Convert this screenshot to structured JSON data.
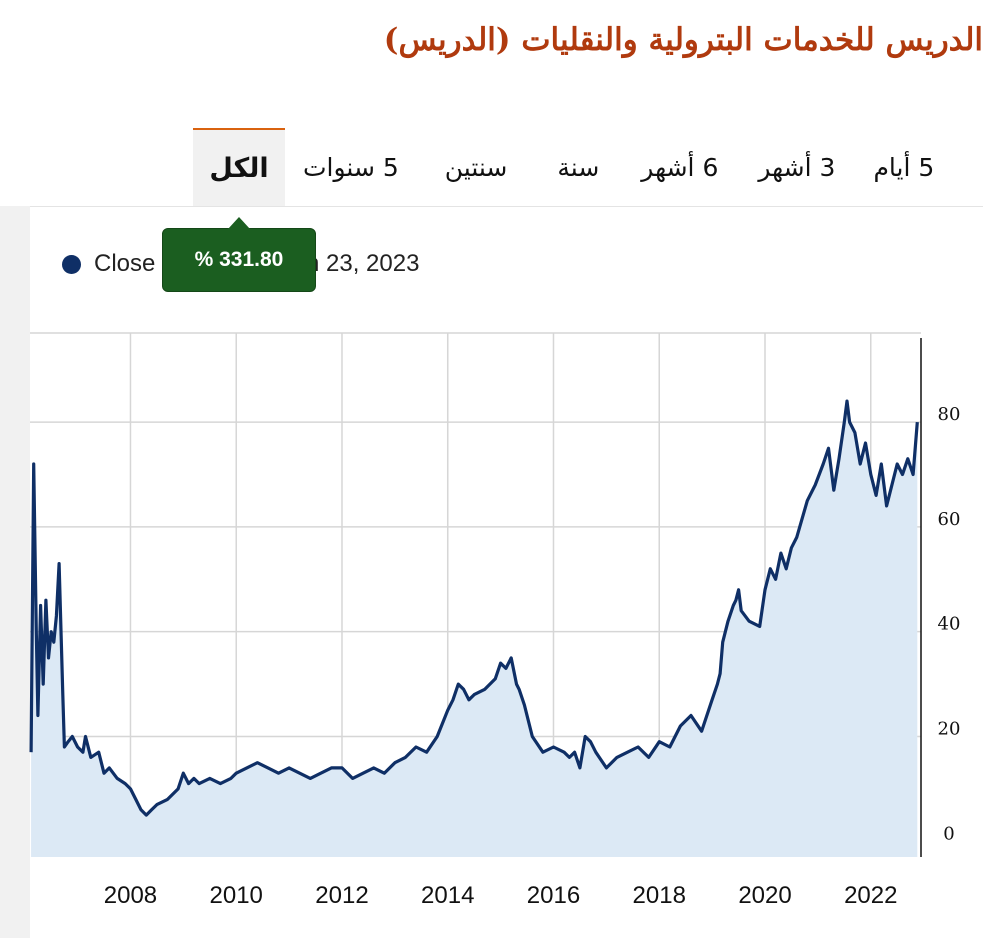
{
  "page": {
    "title": "الدريس للخدمات البترولية والنقليات (الدريس)"
  },
  "tabs": [
    {
      "label": "الكل",
      "active": true
    },
    {
      "label": "5 سنوات",
      "active": false
    },
    {
      "label": "سنتين",
      "active": false
    },
    {
      "label": "سنة",
      "active": false
    },
    {
      "label": "6 أشهر",
      "active": false
    },
    {
      "label": "3 أشهر",
      "active": false
    },
    {
      "label": "5 أيام",
      "active": false
    }
  ],
  "legend": {
    "label": "Close",
    "date_fragment": "n 23, 2023",
    "marker_color": "#0f2f66"
  },
  "tooltip": {
    "text": "% 331.80",
    "color": "#1b5e20"
  },
  "chart_data": {
    "type": "area",
    "title": "",
    "xlabel": "",
    "ylabel": "",
    "x_ticks": [
      "2008",
      "2010",
      "2012",
      "2014",
      "2016",
      "2018",
      "2020",
      "2022"
    ],
    "y_ticks": [
      0,
      20,
      40,
      60,
      80
    ],
    "xlim": [
      2006.1,
      2022.95
    ],
    "ylim": [
      -3,
      97
    ],
    "y_axis_side": "right",
    "grid": true,
    "line_color": "#0f2f66",
    "fill_color": "#dce9f5",
    "series": [
      {
        "x": [
          2006.12,
          2006.17,
          2006.22,
          2006.25,
          2006.3,
          2006.35,
          2006.4,
          2006.45,
          2006.5,
          2006.55,
          2006.6,
          2006.65,
          2006.72,
          2006.75,
          2006.82,
          2006.9,
          2007.0,
          2007.1,
          2007.15,
          2007.25,
          2007.4,
          2007.5,
          2007.6,
          2007.75,
          2007.9,
          2008.0,
          2008.1,
          2008.2,
          2008.3,
          2008.4,
          2008.5,
          2008.7,
          2008.9,
          2009.0,
          2009.1,
          2009.2,
          2009.3,
          2009.5,
          2009.7,
          2009.9,
          2010.0,
          2010.2,
          2010.4,
          2010.6,
          2010.8,
          2011.0,
          2011.2,
          2011.4,
          2011.6,
          2011.8,
          2012.0,
          2012.2,
          2012.4,
          2012.6,
          2012.8,
          2013.0,
          2013.2,
          2013.4,
          2013.6,
          2013.8,
          2014.0,
          2014.1,
          2014.2,
          2014.3,
          2014.4,
          2014.5,
          2014.7,
          2014.9,
          2015.0,
          2015.1,
          2015.2,
          2015.3,
          2015.35,
          2015.45,
          2015.6,
          2015.8,
          2016.0,
          2016.2,
          2016.3,
          2016.4,
          2016.5,
          2016.6,
          2016.7,
          2016.8,
          2017.0,
          2017.2,
          2017.4,
          2017.6,
          2017.8,
          2018.0,
          2018.2,
          2018.4,
          2018.6,
          2018.8,
          2019.0,
          2019.1,
          2019.15,
          2019.2,
          2019.3,
          2019.4,
          2019.45,
          2019.5,
          2019.55,
          2019.7,
          2019.9,
          2020.0,
          2020.1,
          2020.2,
          2020.3,
          2020.4,
          2020.5,
          2020.6,
          2020.8,
          2020.95,
          2021.1,
          2021.2,
          2021.3,
          2021.4,
          2021.5,
          2021.55,
          2021.6,
          2021.7,
          2021.8,
          2021.9,
          2022.0,
          2022.1,
          2022.2,
          2022.3,
          2022.4,
          2022.5,
          2022.6,
          2022.7,
          2022.8,
          2022.88
        ],
        "y": [
          17,
          72,
          40,
          24,
          45,
          30,
          46,
          35,
          40,
          38,
          43,
          53,
          28,
          18,
          19,
          20,
          18,
          17,
          20,
          16,
          17,
          13,
          14,
          12,
          11,
          10,
          8,
          6,
          5,
          6,
          7,
          8,
          10,
          13,
          11,
          12,
          11,
          12,
          11,
          12,
          13,
          14,
          15,
          14,
          13,
          14,
          13,
          12,
          13,
          14,
          14,
          12,
          13,
          14,
          13,
          15,
          16,
          18,
          17,
          20,
          25,
          27,
          30,
          29,
          27,
          28,
          29,
          31,
          34,
          33,
          35,
          30,
          29,
          26,
          20,
          17,
          18,
          17,
          16,
          17,
          14,
          20,
          19,
          17,
          14,
          16,
          17,
          18,
          16,
          19,
          18,
          22,
          24,
          21,
          27,
          30,
          32,
          38,
          42,
          45,
          46,
          48,
          44,
          42,
          41,
          48,
          52,
          50,
          55,
          52,
          56,
          58,
          65,
          68,
          72,
          75,
          67,
          73,
          80,
          84,
          80,
          78,
          72,
          76,
          70,
          66,
          72,
          64,
          68,
          72,
          70,
          73,
          70,
          80
        ]
      }
    ]
  }
}
